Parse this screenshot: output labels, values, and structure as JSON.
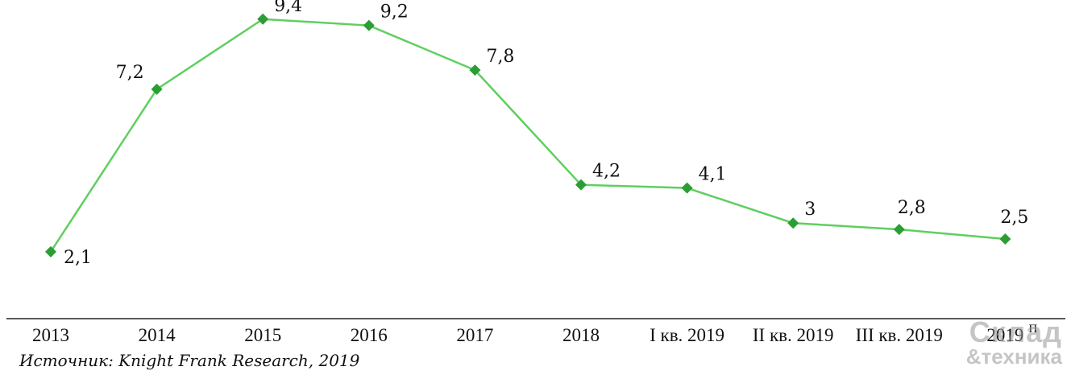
{
  "chart_data": {
    "type": "line",
    "categories": [
      "2013",
      "2014",
      "2015",
      "2016",
      "2017",
      "2018",
      "I кв. 2019",
      "II кв. 2019",
      "III кв. 2019",
      "2019"
    ],
    "category_suffix": [
      "",
      "",
      "",
      "",
      "",
      "",
      "",
      "",
      "",
      "П"
    ],
    "values": [
      2.1,
      7.2,
      9.4,
      9.2,
      7.8,
      4.2,
      4.1,
      3,
      2.8,
      2.5
    ],
    "value_labels": [
      "2,1",
      "7,2",
      "9,4",
      "9,2",
      "7,8",
      "4,2",
      "4,1",
      "3",
      "2,8",
      "2,5"
    ],
    "ylim": [
      0,
      10
    ],
    "grid": false,
    "line_color": "#5fcf5f",
    "marker_color": "#2a9e35",
    "marker": "diamond"
  },
  "source": "Источник: Knight Frank Research, 2019",
  "watermark": {
    "top": "Склад",
    "bottom": "&техника"
  }
}
